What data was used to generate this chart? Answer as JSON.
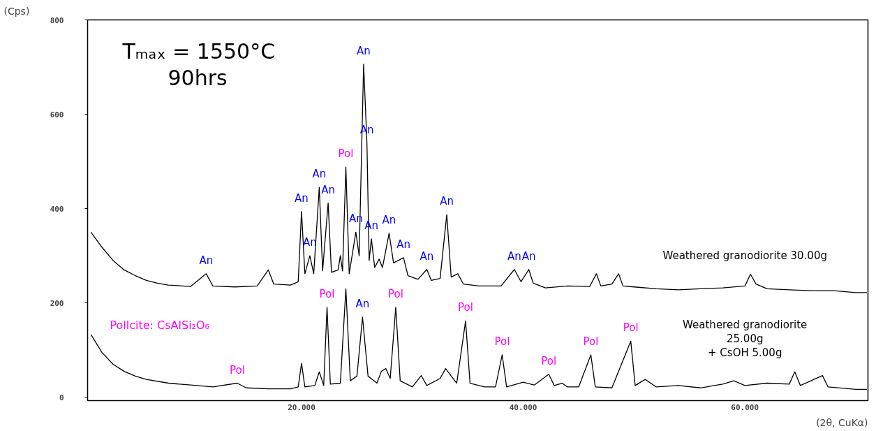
{
  "chart_data": {
    "type": "line",
    "xlabel": "(2θ, CuKα)",
    "ylabel": "(Cps)",
    "xlim": [
      0.7,
      71.1
    ],
    "ylim": [
      -7,
      800
    ],
    "xticks": [
      {
        "value": 20,
        "label": "20.000"
      },
      {
        "value": 40,
        "label": "40.000"
      },
      {
        "value": 60,
        "label": "60.000"
      }
    ],
    "yticks": [
      0,
      200,
      400,
      600,
      800
    ],
    "grid": false,
    "legend": false,
    "marker": "none",
    "line_style": "solid",
    "series": [
      {
        "name": "Weathered granodiorite 30.00g",
        "color": "#000000",
        "x": [
          1,
          2,
          3,
          4,
          5,
          6,
          7,
          8,
          10,
          11.4,
          12,
          14,
          16,
          17,
          17.5,
          19,
          19.7,
          20.0,
          20.3,
          20.75,
          21.1,
          21.6,
          21.9,
          22.4,
          22.7,
          23.3,
          23.5,
          23.7,
          24.0,
          24.3,
          24.9,
          25.2,
          25.6,
          25.9,
          26.1,
          26.3,
          26.6,
          27.0,
          27.3,
          27.9,
          28.3,
          29.2,
          29.6,
          30.5,
          31.3,
          31.7,
          32.5,
          33.1,
          33.5,
          34.1,
          34.6,
          36,
          38,
          39.2,
          39.8,
          40.5,
          40.9,
          42,
          44,
          46,
          46.6,
          47,
          48,
          48.6,
          49,
          50,
          52,
          54,
          56,
          58,
          60,
          60.5,
          61,
          62,
          64,
          66,
          68,
          70,
          71
        ],
        "values": [
          350,
          318,
          290,
          270,
          258,
          248,
          242,
          238,
          235,
          262,
          236,
          234,
          236,
          270,
          240,
          238,
          245,
          394,
          262,
          300,
          262,
          445,
          268,
          412,
          265,
          270,
          300,
          268,
          488,
          262,
          350,
          300,
          706,
          539,
          290,
          336,
          275,
          293,
          275,
          348,
          285,
          296,
          258,
          250,
          271,
          248,
          252,
          387,
          255,
          262,
          240,
          236,
          236,
          271,
          245,
          271,
          242,
          232,
          236,
          235,
          262,
          236,
          240,
          262,
          236,
          234,
          230,
          228,
          230,
          232,
          236,
          261,
          240,
          230,
          228,
          226,
          226,
          222,
          222
        ]
      },
      {
        "name": "Weathered granodiorite\n25.00g\n+ CsOH 5.00g",
        "color": "#000000",
        "x": [
          1,
          2,
          3,
          4,
          5,
          6,
          8,
          10,
          12,
          14.2,
          15,
          17,
          19,
          19.7,
          20.0,
          20.3,
          21.2,
          21.6,
          22.0,
          22.3,
          22.6,
          23.5,
          24.0,
          24.4,
          25.0,
          25.5,
          26.0,
          26.8,
          27.2,
          27.6,
          28.0,
          28.5,
          28.9,
          30,
          30.8,
          31.3,
          32.5,
          33.0,
          33.5,
          34.0,
          34.8,
          35.2,
          36.5,
          37.5,
          38.1,
          38.5,
          40,
          41,
          42.3,
          42.8,
          43.5,
          44,
          45,
          46.1,
          46.5,
          48,
          49.7,
          50.1,
          51,
          52,
          54,
          56,
          58,
          59,
          60,
          62,
          64,
          64.5,
          65,
          67,
          67.5,
          70,
          71
        ],
        "values": [
          133,
          95,
          70,
          55,
          45,
          38,
          30,
          26,
          22,
          30,
          20,
          18,
          18,
          22,
          72,
          22,
          25,
          54,
          25,
          191,
          28,
          30,
          230,
          35,
          45,
          170,
          45,
          30,
          55,
          61,
          40,
          191,
          35,
          22,
          46,
          25,
          40,
          61,
          45,
          30,
          162,
          30,
          22,
          22,
          90,
          22,
          32,
          26,
          49,
          25,
          30,
          22,
          22,
          90,
          22,
          20,
          119,
          25,
          38,
          22,
          25,
          20,
          28,
          35,
          25,
          30,
          28,
          54,
          25,
          46,
          22,
          17,
          17
        ]
      }
    ],
    "annotations": [
      "Tₘₐₓ = 1550°C",
      "90hrs",
      "Pollcite: CsAlSi₂O₆",
      {
        "text": "An",
        "x": 11.4,
        "y": 262
      },
      {
        "text": "An",
        "x": 20.0,
        "y": 394
      },
      {
        "text": "An",
        "x": 20.75,
        "y": 300
      },
      {
        "text": "An",
        "x": 21.6,
        "y": 445
      },
      {
        "text": "An",
        "x": 22.4,
        "y": 412
      },
      {
        "text": "Pol",
        "x": 24.0,
        "y": 488
      },
      {
        "text": "An",
        "x": 24.9,
        "y": 350
      },
      {
        "text": "An",
        "x": 25.6,
        "y": 706
      },
      {
        "text": "An",
        "x": 25.9,
        "y": 539
      },
      {
        "text": "An",
        "x": 26.3,
        "y": 336
      },
      {
        "text": "An",
        "x": 27.9,
        "y": 348
      },
      {
        "text": "An",
        "x": 29.2,
        "y": 296
      },
      {
        "text": "An",
        "x": 31.3,
        "y": 271
      },
      {
        "text": "An",
        "x": 33.1,
        "y": 387
      },
      {
        "text": "An",
        "x": 39.2,
        "y": 271
      },
      {
        "text": "An",
        "x": 40.5,
        "y": 271
      },
      {
        "text": "Pol",
        "x": 14.2,
        "y": 30
      },
      {
        "text": "Pol",
        "x": 22.3,
        "y": 191
      },
      {
        "text": "An",
        "x": 25.5,
        "y": 170
      },
      {
        "text": "Pol",
        "x": 28.5,
        "y": 191
      },
      {
        "text": "Pol",
        "x": 34.8,
        "y": 162
      },
      {
        "text": "Pol",
        "x": 38.1,
        "y": 90
      },
      {
        "text": "Pol",
        "x": 42.3,
        "y": 49
      },
      {
        "text": "Pol",
        "x": 46.1,
        "y": 90
      },
      {
        "text": "Pol",
        "x": 49.7,
        "y": 119
      }
    ]
  }
}
